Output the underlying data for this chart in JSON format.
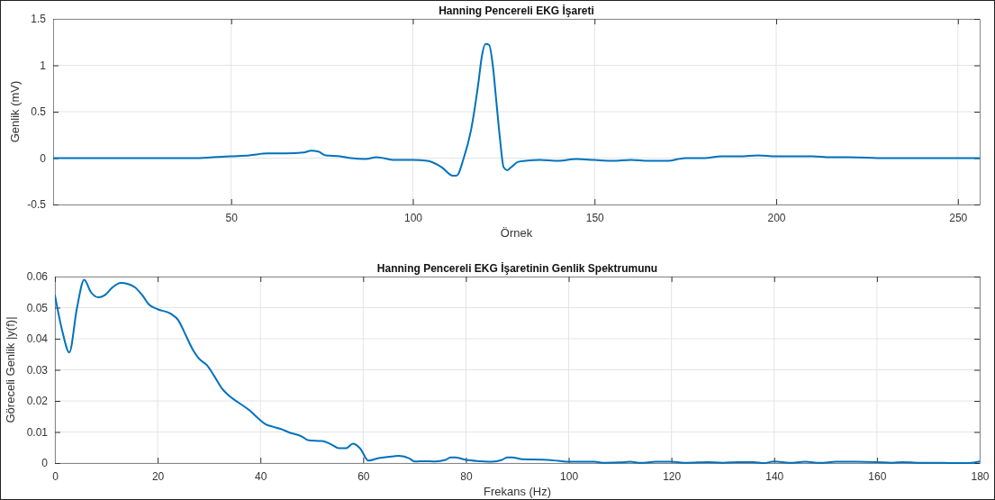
{
  "chart_data": [
    {
      "type": "line",
      "title": "Hanning Pencereli EKG İşareti",
      "xlabel": "Örnek",
      "ylabel": "Genlik (mV)",
      "xlim": [
        1,
        256
      ],
      "ylim": [
        -0.5,
        1.5
      ],
      "xticks": [
        50,
        100,
        150,
        200,
        250
      ],
      "yticks": [
        -0.5,
        0,
        0.5,
        1,
        1.5
      ],
      "grid": true,
      "series": [
        {
          "color": "#0072bd",
          "x": [
            1,
            30,
            40,
            45,
            50,
            55,
            60,
            65,
            70,
            72,
            74,
            76,
            80,
            83,
            87,
            90,
            95,
            100,
            104,
            108,
            111,
            112,
            114,
            116,
            118,
            119,
            120,
            121,
            122,
            123,
            124,
            125,
            126,
            127,
            129,
            131,
            135,
            140,
            145,
            150,
            155,
            160,
            165,
            170,
            175,
            180,
            185,
            190,
            195,
            200,
            210,
            215,
            220,
            230,
            256
          ],
          "values": [
            0,
            0,
            0,
            0.01,
            0.02,
            0.03,
            0.05,
            0.05,
            0.06,
            0.08,
            0.07,
            0.03,
            0.02,
            0,
            -0.01,
            0.01,
            -0.02,
            -0.02,
            -0.03,
            -0.1,
            -0.19,
            -0.19,
            0,
            0.3,
            0.8,
            1.1,
            1.23,
            1.22,
            1,
            0.6,
            0.2,
            -0.1,
            -0.13,
            -0.1,
            -0.04,
            -0.03,
            -0.02,
            -0.03,
            -0.01,
            -0.02,
            -0.03,
            -0.02,
            -0.03,
            -0.03,
            0,
            0,
            0.02,
            0.02,
            0.03,
            0.02,
            0.02,
            0.01,
            0.01,
            0,
            0
          ]
        }
      ]
    },
    {
      "type": "line",
      "title": "Hanning Pencereli EKG İşaretinin Genlik Spektrumunu",
      "xlabel": "Frekans (Hz)",
      "ylabel": "Göreceli Genlik |y(f)|",
      "xlim": [
        0,
        180
      ],
      "ylim": [
        0,
        0.06
      ],
      "xticks": [
        0,
        20,
        40,
        60,
        80,
        100,
        120,
        140,
        160,
        180
      ],
      "yticks": [
        0,
        0.01,
        0.02,
        0.03,
        0.04,
        0.05,
        0.06
      ],
      "grid": true,
      "series": [
        {
          "color": "#0072bd",
          "x": [
            0,
            1.5,
            2.8,
            4.3,
            5.7,
            7,
            8.5,
            9.7,
            11.2,
            12.8,
            14.1,
            15.6,
            17,
            18.3,
            20,
            22.6,
            24,
            25.5,
            27,
            28.1,
            29.6,
            31,
            32.5,
            34,
            35.7,
            38,
            39.5,
            41,
            42.4,
            43.9,
            45.7,
            48,
            49.4,
            52,
            53.8,
            55.3,
            56.7,
            58,
            59.4,
            61,
            63,
            66,
            67,
            69,
            70,
            72,
            74,
            76,
            77,
            78,
            80,
            83,
            85,
            87,
            88,
            89,
            91,
            95,
            98,
            100,
            105,
            107,
            110,
            112,
            114,
            117,
            120,
            123,
            127,
            130,
            133,
            136,
            138,
            140,
            143,
            146,
            149,
            152,
            156,
            160,
            163,
            165,
            168,
            171,
            175,
            178,
            180
          ],
          "values": [
            0.054,
            0.042,
            0.0356,
            0.05,
            0.059,
            0.055,
            0.0533,
            0.054,
            0.0565,
            0.058,
            0.0577,
            0.0565,
            0.054,
            0.051,
            0.0495,
            0.048,
            0.046,
            0.041,
            0.036,
            0.0335,
            0.0315,
            0.028,
            0.024,
            0.0215,
            0.0195,
            0.0168,
            0.0145,
            0.0125,
            0.0117,
            0.011,
            0.0098,
            0.0086,
            0.0073,
            0.0071,
            0.006,
            0.0048,
            0.0048,
            0.0062,
            0.0047,
            0.0008,
            0.0016,
            0.0022,
            0.0023,
            0.0015,
            0.0005,
            0.0006,
            0.0005,
            0.001,
            0.0018,
            0.0018,
            0.001,
            0.0006,
            0.0004,
            0.001,
            0.0018,
            0.0018,
            0.0012,
            0.0011,
            0.0007,
            0.0004,
            0.0004,
            0.0001,
            0.0002,
            0.0004,
            0.0001,
            0.0004,
            0.0004,
            0.0001,
            0.0003,
            0.0001,
            0.0003,
            0.0003,
            0,
            0.0005,
            0.0001,
            0.0004,
            0.0001,
            0.0004,
            0.0004,
            0.0003,
            0.0001,
            0.0003,
            0.0001,
            0.0001,
            0,
            0,
            0.0005
          ]
        }
      ]
    }
  ]
}
